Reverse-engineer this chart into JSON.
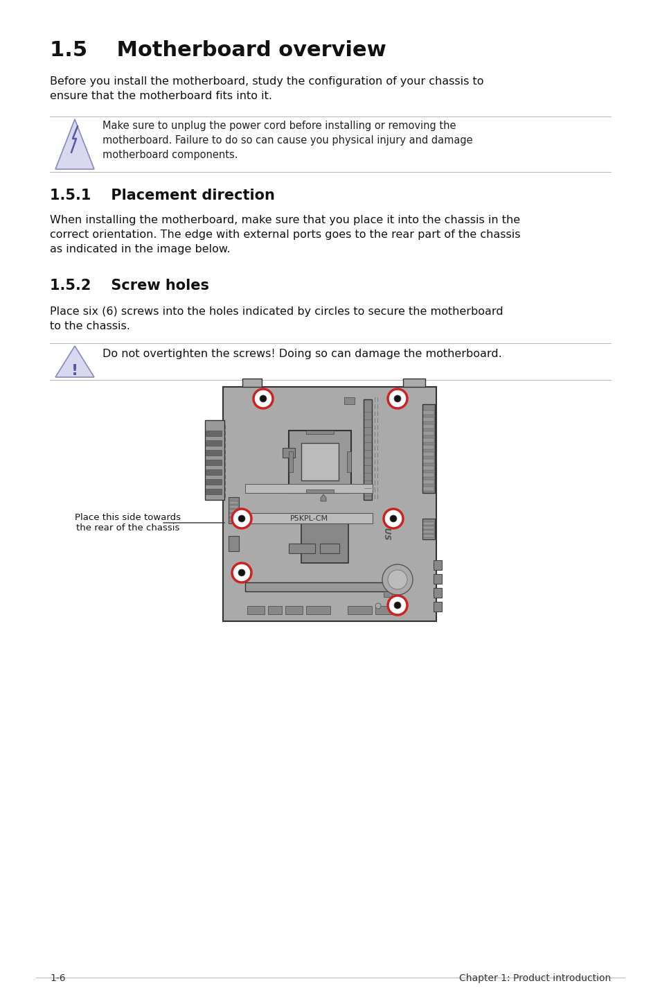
{
  "title": "1.5    Motherboard overview",
  "title_fontsize": 22,
  "body_fontsize": 11.5,
  "section1_title": "1.5.1    Placement direction",
  "section2_title": "1.5.2    Screw holes",
  "intro_text": "Before you install the motherboard, study the configuration of your chassis to\nensure that the motherboard fits into it.",
  "warning_text": "Make sure to unplug the power cord before installing or removing the\nmotherboard. Failure to do so can cause you physical injury and damage\nmotherboard components.",
  "placement_text": "When installing the motherboard, make sure that you place it into the chassis in the\ncorrect orientation. The edge with external ports goes to the rear part of the chassis\nas indicated in the image below.",
  "screw_text": "Place six (6) screws into the holes indicated by circles to secure the motherboard\nto the chassis.",
  "caution_text": "Do not overtighten the screws! Doing so can damage the motherboard.",
  "arrow_label": "Place this side towards\nthe rear of the chassis",
  "board_label": "P5KPL-CM",
  "footer_left": "1-6",
  "footer_right": "Chapter 1: Product introduction",
  "bg_color": "#ffffff",
  "board_color": "#aaaaaa",
  "board_outline": "#333333",
  "screw_ring": "#cc2222",
  "line_color": "#bbbbbb",
  "icon_fill": "#d8d8ef",
  "icon_edge": "#8888bb"
}
